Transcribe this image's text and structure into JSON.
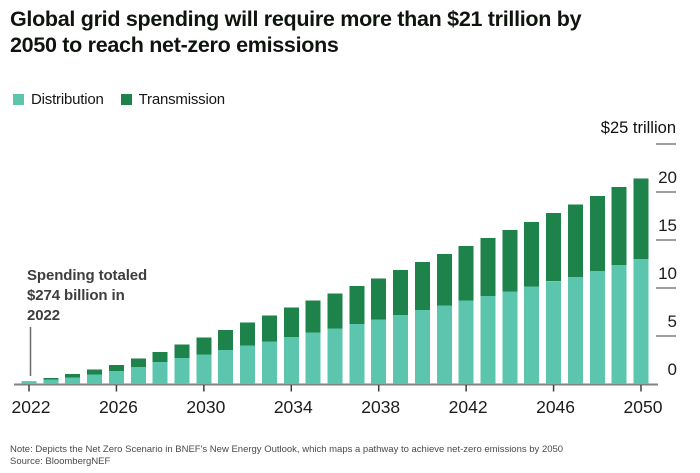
{
  "page": {
    "title_line1": "Global grid spending will require more than $21 trillion by",
    "title_line2": "2050 to reach net-zero emissions",
    "note": "Note: Depicts the Net Zero Scenario in BNEF's New Energy Outlook, which maps a pathway to achieve net-zero emissions by 2050",
    "source": "Source: BloombergNEF"
  },
  "legend": {
    "items": [
      {
        "label": "Distribution",
        "color": "#5bc5ad"
      },
      {
        "label": "Transmission",
        "color": "#1e824b"
      }
    ]
  },
  "annotation": {
    "lines": [
      "Spending totaled",
      "$274 billion in",
      "2022"
    ]
  },
  "chart_data": {
    "type": "bar",
    "stacked": true,
    "title": "Global grid spending will require more than $21 trillion by 2050 to reach net-zero emissions",
    "unit_label": "$25 trillion",
    "xlabel": "",
    "ylabel": "trillion $",
    "ylim": [
      0,
      25
    ],
    "grid": false,
    "legend_position": "top-left",
    "categories": [
      2022,
      2023,
      2024,
      2025,
      2026,
      2027,
      2028,
      2029,
      2030,
      2031,
      2032,
      2033,
      2034,
      2035,
      2036,
      2037,
      2038,
      2039,
      2040,
      2041,
      2042,
      2043,
      2044,
      2045,
      2046,
      2047,
      2048,
      2049,
      2050
    ],
    "series": [
      {
        "name": "Distribution",
        "color": "#5bc5ad",
        "values": [
          0.19,
          0.45,
          0.7,
          1.0,
          1.35,
          1.8,
          2.3,
          2.7,
          3.05,
          3.55,
          4.0,
          4.45,
          4.9,
          5.35,
          5.8,
          6.25,
          6.7,
          7.2,
          7.7,
          8.2,
          8.7,
          9.15,
          9.65,
          10.15,
          10.65,
          11.15,
          11.75,
          12.4,
          13.05
        ]
      },
      {
        "name": "Transmission",
        "color": "#1e824b",
        "values": [
          0.08,
          0.2,
          0.35,
          0.5,
          0.65,
          0.85,
          1.05,
          1.4,
          1.8,
          2.05,
          2.4,
          2.7,
          3.05,
          3.35,
          3.65,
          3.95,
          4.3,
          4.65,
          5.0,
          5.35,
          5.7,
          6.05,
          6.4,
          6.75,
          7.15,
          7.55,
          7.85,
          8.1,
          8.35
        ]
      }
    ],
    "totals_note": "2022 total = $0.27 trillion ($274 billion); 2050 total = $21.4 trillion",
    "x_tick_labels": [
      "2022",
      "2026",
      "2030",
      "2034",
      "2038",
      "2042",
      "2046",
      "2050"
    ],
    "y_ticks": [
      0,
      5,
      10,
      15,
      20
    ],
    "y_dash_ticks": [
      5,
      10,
      15,
      20,
      25
    ],
    "annotation": "Spending totaled $274 billion in 2022"
  }
}
